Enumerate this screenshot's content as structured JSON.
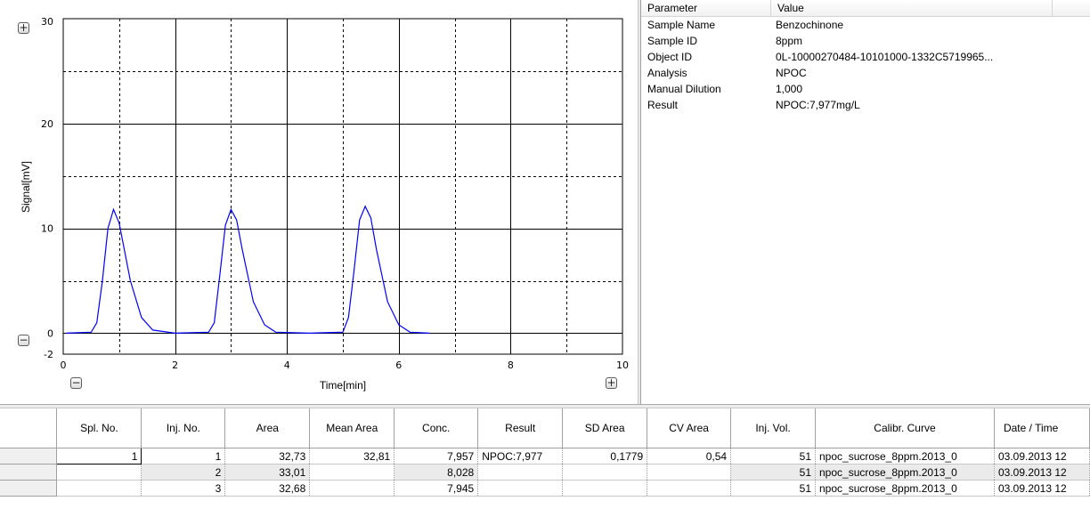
{
  "chart_data": {
    "type": "line",
    "title": "",
    "xlabel": "Time[min]",
    "ylabel": "Signal[mV]",
    "xlim": [
      0,
      10
    ],
    "ylim": [
      -2,
      30
    ],
    "x_ticks": [
      "0",
      "2",
      "4",
      "6",
      "8",
      "10"
    ],
    "y_ticks": [
      "-2",
      "0",
      "10",
      "20",
      "30"
    ],
    "grid": true,
    "series": [
      {
        "color": "#0000ff",
        "x": [
          0.05,
          0.5,
          0.6,
          0.7,
          0.8,
          0.9,
          1.0,
          1.2,
          1.4,
          1.6,
          2.0,
          2.6,
          2.7,
          2.8,
          2.9,
          3.0,
          3.1,
          3.2,
          3.4,
          3.6,
          3.8,
          4.4,
          5.0,
          5.1,
          5.2,
          5.3,
          5.4,
          5.5,
          5.6,
          5.8,
          6.0,
          6.2,
          6.55
        ],
        "y": [
          0,
          0.1,
          1.0,
          5.0,
          10.0,
          11.8,
          10.5,
          5.0,
          1.5,
          0.3,
          0,
          0.1,
          1.0,
          5.5,
          10.3,
          11.8,
          10.8,
          8.0,
          3.0,
          0.8,
          0.1,
          0,
          0.1,
          1.5,
          6.0,
          10.8,
          12.1,
          11.0,
          8.0,
          3.0,
          0.8,
          0.1,
          0
        ]
      }
    ]
  },
  "chart_controls": {
    "zoom_in_y_glyph": "+",
    "zoom_out_y_glyph": "−",
    "zoom_out_x_glyph": "−",
    "zoom_in_x_glyph": "+"
  },
  "parameters": {
    "header": {
      "col1": "Parameter",
      "col2": "Value"
    },
    "rows": [
      {
        "name": "Sample Name",
        "value": "Benzochinone"
      },
      {
        "name": "Sample ID",
        "value": "8ppm"
      },
      {
        "name": "Object ID",
        "value": "0L-10000270484-10101000-1332C5719965..."
      },
      {
        "name": "Analysis",
        "value": "NPOC"
      },
      {
        "name": "Manual Dilution",
        "value": "1,000"
      },
      {
        "name": "Result",
        "value": "NPOC:7,977mg/L"
      }
    ]
  },
  "results_table": {
    "columns": [
      "Spl. No.",
      "Inj. No.",
      "Area",
      "Mean Area",
      "Conc.",
      "Result",
      "SD Area",
      "CV Area",
      "Inj. Vol.",
      "Calibr. Curve",
      "Date / Time"
    ],
    "rows": [
      [
        "1",
        "1",
        "32,73",
        "32,81",
        "7,957",
        "NPOC:7,977",
        "0,1779",
        "0,54",
        "51",
        "npoc_sucrose_8ppm.2013_0",
        "03.09.2013 12"
      ],
      [
        "",
        "2",
        "33,01",
        "",
        "8,028",
        "",
        "",
        "",
        "51",
        "npoc_sucrose_8ppm.2013_0",
        "03.09.2013 12"
      ],
      [
        "",
        "3",
        "32,68",
        "",
        "7,945",
        "",
        "",
        "",
        "51",
        "npoc_sucrose_8ppm.2013_0",
        "03.09.2013 12"
      ]
    ]
  }
}
